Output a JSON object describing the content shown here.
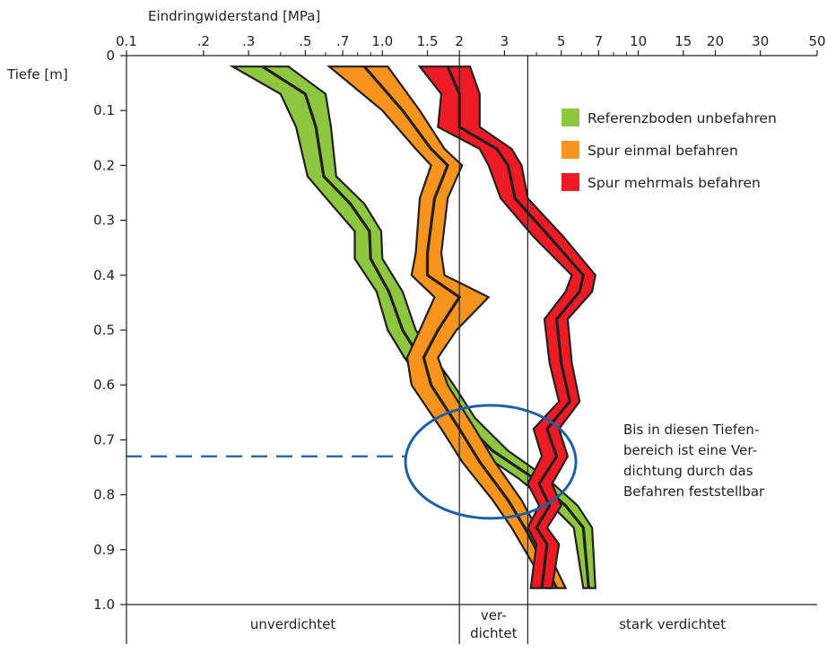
{
  "chart_data": {
    "type": "area",
    "xlabel": "Eindringwiderstand [MPa]",
    "ylabel": "Tiefe [m]",
    "x_scale": "log",
    "xlim": [
      0.1,
      50
    ],
    "ylim": [
      0,
      1.0
    ],
    "y_inverted": true,
    "legend_position": "top-right",
    "x_ticks": [
      {
        "value": 0.1,
        "label": "0.1"
      },
      {
        "value": 0.2,
        "label": ".2"
      },
      {
        "value": 0.3,
        "label": ".3"
      },
      {
        "value": 0.5,
        "label": ".5"
      },
      {
        "value": 0.7,
        "label": ".7"
      },
      {
        "value": 1.0,
        "label": "1.0"
      },
      {
        "value": 1.5,
        "label": "1.5"
      },
      {
        "value": 2,
        "label": "2"
      },
      {
        "value": 3,
        "label": "3"
      },
      {
        "value": 5,
        "label": "5"
      },
      {
        "value": 7,
        "label": "7"
      },
      {
        "value": 10,
        "label": "10"
      },
      {
        "value": 15,
        "label": "15"
      },
      {
        "value": 20,
        "label": "20"
      },
      {
        "value": 30,
        "label": "30"
      },
      {
        "value": 50,
        "label": "50"
      }
    ],
    "y_ticks": [
      {
        "value": 0,
        "label": "0"
      },
      {
        "value": 0.1,
        "label": "0.1"
      },
      {
        "value": 0.2,
        "label": "0.2"
      },
      {
        "value": 0.3,
        "label": "0.3"
      },
      {
        "value": 0.4,
        "label": "0.4"
      },
      {
        "value": 0.5,
        "label": "0.5"
      },
      {
        "value": 0.6,
        "label": "0.6"
      },
      {
        "value": 0.7,
        "label": "0.7"
      },
      {
        "value": 0.8,
        "label": "0.8"
      },
      {
        "value": 0.9,
        "label": "0.9"
      },
      {
        "value": 1.0,
        "label": "1.0"
      }
    ],
    "boundaries": [
      2,
      3.7
    ],
    "zones": [
      {
        "label_lines": [
          "unverdichtet"
        ]
      },
      {
        "label_lines": [
          "ver-",
          "dichtet"
        ]
      },
      {
        "label_lines": [
          "stark verdichtet"
        ]
      }
    ],
    "series": [
      {
        "name": "Referenzboden unbefahren",
        "color": "#8dc63f",
        "depth": [
          0.02,
          0.07,
          0.13,
          0.22,
          0.27,
          0.32,
          0.37,
          0.43,
          0.5,
          0.55,
          0.6,
          0.66,
          0.72,
          0.77,
          0.82,
          0.86,
          0.97
        ],
        "median": [
          0.34,
          0.5,
          0.55,
          0.59,
          0.75,
          0.89,
          0.9,
          1.06,
          1.2,
          1.4,
          1.65,
          2.0,
          2.7,
          3.9,
          5.2,
          6.1,
          6.4
        ],
        "min": [
          0.26,
          0.4,
          0.46,
          0.51,
          0.63,
          0.78,
          0.78,
          0.95,
          1.05,
          1.22,
          1.45,
          1.75,
          2.35,
          3.4,
          4.6,
          5.6,
          6.1
        ],
        "max": [
          0.43,
          0.6,
          0.63,
          0.66,
          0.85,
          0.99,
          1.0,
          1.2,
          1.35,
          1.6,
          1.9,
          2.3,
          3.1,
          4.4,
          5.8,
          6.6,
          6.8
        ]
      },
      {
        "name": "Spur einmal befahren",
        "color": "#f7941d",
        "depth": [
          0.02,
          0.1,
          0.17,
          0.2,
          0.26,
          0.36,
          0.4,
          0.44,
          0.5,
          0.55,
          0.6,
          0.68,
          0.74,
          0.81,
          0.86,
          0.97
        ],
        "median": [
          0.85,
          1.2,
          1.55,
          1.8,
          1.6,
          1.5,
          1.5,
          2.0,
          1.65,
          1.45,
          1.55,
          2.0,
          2.4,
          3.1,
          3.6,
          4.8
        ],
        "min": [
          0.62,
          1.0,
          1.35,
          1.55,
          1.4,
          1.35,
          1.3,
          1.6,
          1.4,
          1.25,
          1.3,
          1.7,
          2.05,
          2.7,
          3.2,
          4.4
        ],
        "max": [
          1.05,
          1.4,
          1.75,
          2.05,
          1.8,
          1.7,
          1.75,
          2.6,
          1.95,
          1.65,
          1.8,
          2.3,
          2.75,
          3.5,
          4.0,
          5.2
        ]
      },
      {
        "name": "Spur mehrmals befahren",
        "color": "#ed1c24",
        "depth": [
          0.02,
          0.07,
          0.13,
          0.17,
          0.2,
          0.26,
          0.33,
          0.4,
          0.43,
          0.48,
          0.56,
          0.63,
          0.68,
          0.73,
          0.78,
          0.82,
          0.86,
          0.89,
          0.97
        ],
        "median": [
          1.8,
          2.0,
          2.0,
          2.8,
          3.1,
          3.3,
          4.5,
          6.1,
          5.9,
          4.8,
          5.0,
          5.4,
          4.4,
          4.8,
          4.1,
          4.5,
          4.0,
          4.4,
          4.2
        ],
        "min": [
          1.4,
          1.7,
          1.65,
          2.4,
          2.6,
          2.9,
          3.9,
          5.5,
          5.2,
          4.3,
          4.5,
          4.9,
          3.9,
          4.2,
          3.7,
          4.1,
          3.7,
          4.0,
          3.8
        ],
        "max": [
          2.2,
          2.4,
          2.4,
          3.2,
          3.5,
          3.7,
          5.1,
          6.8,
          6.6,
          5.3,
          5.5,
          5.9,
          4.9,
          5.3,
          4.6,
          5.0,
          4.4,
          4.9,
          4.6
        ]
      }
    ],
    "annotation": {
      "depth": 0.73,
      "ellipse_center": [
        2.65,
        0.74
      ],
      "text_lines": [
        "Bis in diesen Tiefen-",
        "bereich ist eine Ver-",
        "dichtung durch das",
        "Befahren feststellbar"
      ]
    }
  }
}
